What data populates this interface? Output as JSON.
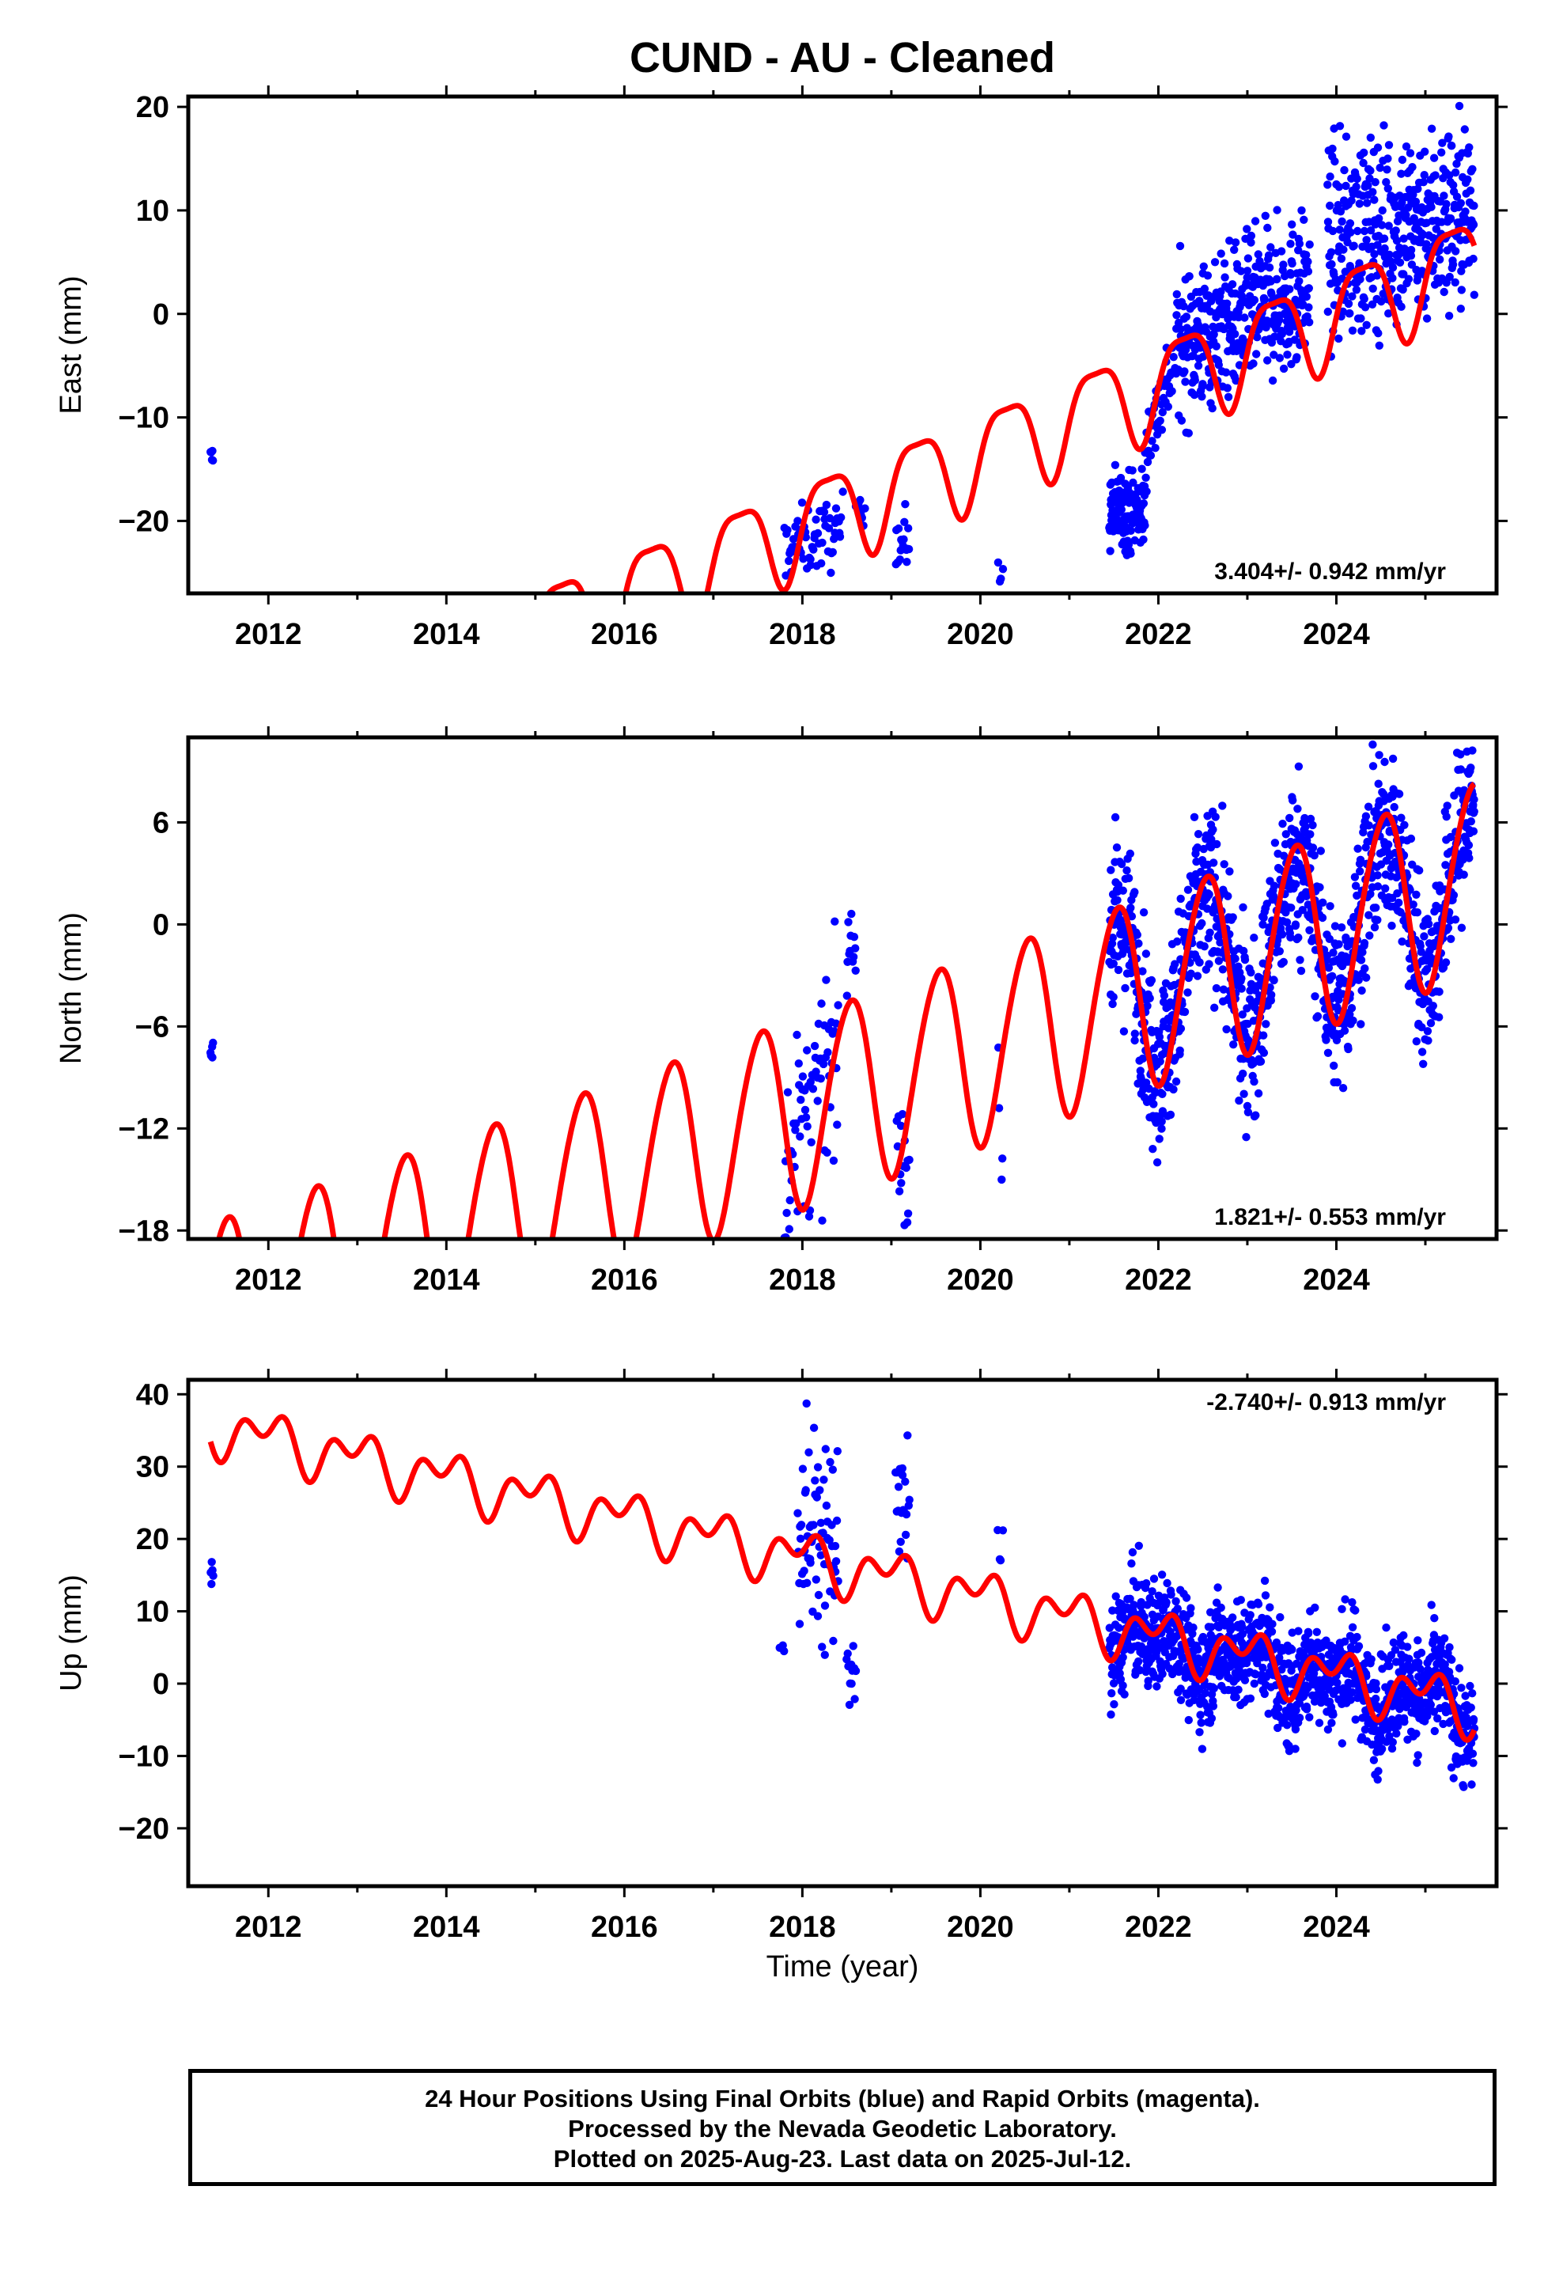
{
  "title": "CUND  - AU - Cleaned",
  "xlabel": "Time (year)",
  "footer": {
    "line1": "24 Hour Positions Using Final Orbits (blue) and Rapid Orbits (magenta).",
    "line2": "Processed by the Nevada Geodetic Laboratory.",
    "line3": "Plotted on 2025-Aug-23. Last data on 2025-Jul-12."
  },
  "colors": {
    "observations": "#0000ff",
    "model": "#ff0000",
    "frame": "#000000"
  },
  "chart_data": [
    {
      "type": "scatter",
      "panel": "east",
      "ylabel": "East (mm)",
      "xlim": [
        2011.1,
        2025.8
      ],
      "ylim": [
        -27,
        21
      ],
      "xticks": [
        2012,
        2014,
        2016,
        2018,
        2020,
        2022,
        2024
      ],
      "yticks": [
        20,
        10,
        0,
        -10,
        -20
      ],
      "ytick_labels": [
        "20",
        "10",
        "0",
        "−10",
        "−20"
      ],
      "rate_label": "3.404+/- 0.942 mm/yr",
      "model": {
        "name": "model",
        "t0": 2022.0,
        "y0": -6.7,
        "rate": 3.404,
        "annual_amp": 4.5,
        "annual_phase": 2022.3,
        "semiannual_amp": 1.2,
        "semiannual_phase": 2022.05
      },
      "observation_segments": [
        {
          "t_start": 2011.35,
          "t_end": 2011.38,
          "y_start": -14.0,
          "y_end": -14.0,
          "spread": 1.5,
          "n": 5
        },
        {
          "t_start": 2017.8,
          "t_end": 2018.45,
          "y_start": -22.5,
          "y_end": -21.0,
          "spread": 4.0,
          "n": 60
        },
        {
          "t_start": 2018.6,
          "t_end": 2018.7,
          "y_start": -18.5,
          "y_end": -18.0,
          "spread": 2.5,
          "n": 10
        },
        {
          "t_start": 2019.05,
          "t_end": 2019.2,
          "y_start": -22.0,
          "y_end": -22.0,
          "spread": 4.0,
          "n": 18
        },
        {
          "t_start": 2020.2,
          "t_end": 2020.25,
          "y_start": -25.5,
          "y_end": -25.5,
          "spread": 2.0,
          "n": 4
        },
        {
          "t_start": 2021.45,
          "t_end": 2021.85,
          "y_start": -19.0,
          "y_end": -19.0,
          "spread": 4.5,
          "n": 130
        },
        {
          "t_start": 2021.85,
          "t_end": 2022.2,
          "y_start": -13.0,
          "y_end": -4.0,
          "spread": 5.0,
          "n": 50
        },
        {
          "t_start": 2022.2,
          "t_end": 2023.7,
          "y_start": -3.0,
          "y_end": 2.5,
          "spread": 8.5,
          "n": 400
        },
        {
          "t_start": 2023.9,
          "t_end": 2025.55,
          "y_start": 6.5,
          "y_end": 10.0,
          "spread": 11.0,
          "n": 420
        }
      ]
    },
    {
      "type": "scatter",
      "panel": "north",
      "ylabel": "North (mm)",
      "xlim": [
        2011.1,
        2025.8
      ],
      "ylim": [
        -18.5,
        11
      ],
      "xticks": [
        2012,
        2014,
        2016,
        2018,
        2020,
        2022,
        2024
      ],
      "yticks": [
        6,
        0,
        -6,
        -12,
        -18
      ],
      "ytick_labels": [
        "6",
        "0",
        "−6",
        "−12",
        "−18"
      ],
      "rate_label": "1.821+/- 0.553 mm/yr",
      "model": {
        "name": "model",
        "t0": 2022.0,
        "y0": -3.6,
        "rate": 1.821,
        "annual_amp": 5.6,
        "annual_phase": 2022.53,
        "semiannual_amp": 0.5,
        "semiannual_phase": 2022.2
      },
      "observation_segments": [
        {
          "t_start": 2011.35,
          "t_end": 2011.38,
          "y_start": -7.5,
          "y_end": -7.5,
          "spread": 2.0,
          "n": 5
        },
        {
          "t_start": 2017.8,
          "t_end": 2018.4,
          "y_start": -14.0,
          "y_end": -8.0,
          "spread": 7.0,
          "n": 70
        },
        {
          "t_start": 2018.5,
          "t_end": 2018.6,
          "y_start": -2.0,
          "y_end": -1.0,
          "spread": 3.0,
          "n": 12
        },
        {
          "t_start": 2019.05,
          "t_end": 2019.2,
          "y_start": -14.0,
          "y_end": -14.0,
          "spread": 8.0,
          "n": 20
        },
        {
          "t_start": 2020.2,
          "t_end": 2020.25,
          "y_start": -13.0,
          "y_end": -13.0,
          "spread": 5.0,
          "n": 4
        },
        {
          "t_start": 2021.45,
          "t_end": 2025.55,
          "y_start": -3.5,
          "y_end": 3.0,
          "spread": 6.0,
          "n": 1200,
          "follows_model": true
        }
      ]
    },
    {
      "type": "scatter",
      "panel": "up",
      "ylabel": "Up (mm)",
      "xlim": [
        2011.1,
        2025.8
      ],
      "ylim": [
        -28,
        42
      ],
      "xticks": [
        2012,
        2014,
        2016,
        2018,
        2020,
        2022,
        2024
      ],
      "yticks": [
        40,
        30,
        20,
        10,
        0,
        -10,
        -20
      ],
      "ytick_labels": [
        "40",
        "30",
        "20",
        "10",
        "0",
        "−10",
        "−20"
      ],
      "rate_label": "-2.740+/- 0.913 mm/yr",
      "model": {
        "name": "model",
        "t0": 2022.0,
        "y0": 6.5,
        "rate": -2.74,
        "annual_amp": 2.6,
        "annual_phase": 2022.0,
        "semiannual_amp": 2.3,
        "semiannual_phase": 2022.2
      },
      "observation_segments": [
        {
          "t_start": 2011.35,
          "t_end": 2011.38,
          "y_start": 15.0,
          "y_end": 15.0,
          "spread": 3.0,
          "n": 5
        },
        {
          "t_start": 2017.75,
          "t_end": 2017.8,
          "y_start": 5.0,
          "y_end": 5.0,
          "spread": 2.0,
          "n": 3
        },
        {
          "t_start": 2017.95,
          "t_end": 2018.4,
          "y_start": 22.0,
          "y_end": 18.0,
          "spread": 17.0,
          "n": 70
        },
        {
          "t_start": 2018.5,
          "t_end": 2018.6,
          "y_start": 4.0,
          "y_end": 2.0,
          "spread": 7.0,
          "n": 12
        },
        {
          "t_start": 2019.05,
          "t_end": 2019.2,
          "y_start": 24.0,
          "y_end": 24.0,
          "spread": 10.0,
          "n": 20
        },
        {
          "t_start": 2020.2,
          "t_end": 2020.25,
          "y_start": 20.0,
          "y_end": 20.0,
          "spread": 7.0,
          "n": 4
        },
        {
          "t_start": 2021.45,
          "t_end": 2025.55,
          "y_start": 5.0,
          "y_end": -5.0,
          "spread": 9.0,
          "n": 1200,
          "follows_model": true
        }
      ]
    }
  ]
}
